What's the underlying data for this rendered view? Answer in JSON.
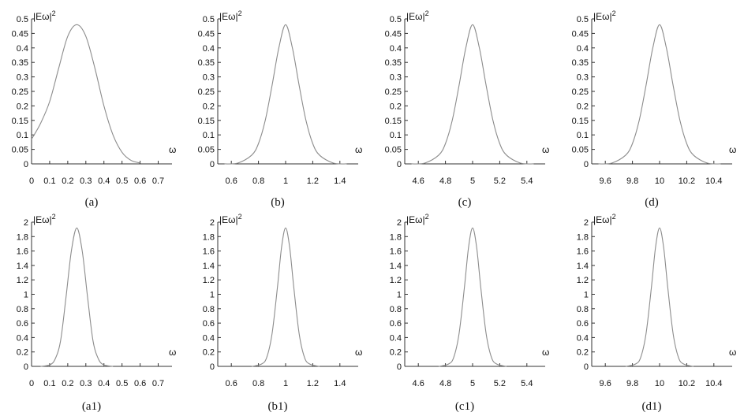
{
  "chart_data": [
    {
      "type": "line",
      "caption": "(a)",
      "ylabel": "|Eω|",
      "ylabel_exp": "2",
      "xlabel": "ω",
      "xlim": [
        0,
        0.75
      ],
      "ylim": [
        0,
        0.5
      ],
      "xticks": [
        "0",
        "0.1",
        "0.2",
        "0.3",
        "0.4",
        "0.5",
        "0.6",
        "0.7"
      ],
      "xtick_values": [
        0,
        0.1,
        0.2,
        0.3,
        0.4,
        0.5,
        0.6,
        0.7
      ],
      "yticks": [
        "0",
        "0.05",
        "0.1",
        "0.15",
        "0.2",
        "0.25",
        "0.3",
        "0.35",
        "0.4",
        "0.45",
        "0.5"
      ],
      "ytick_values": [
        0,
        0.05,
        0.1,
        0.15,
        0.2,
        0.25,
        0.3,
        0.35,
        0.4,
        0.45,
        0.5
      ],
      "series": [
        {
          "x": [
            0,
            0.05,
            0.1,
            0.15,
            0.2,
            0.25,
            0.3,
            0.35,
            0.4,
            0.45,
            0.5,
            0.55,
            0.6
          ],
          "y": [
            0.085,
            0.14,
            0.215,
            0.33,
            0.44,
            0.48,
            0.44,
            0.33,
            0.2,
            0.1,
            0.04,
            0.012,
            0.003
          ]
        }
      ]
    },
    {
      "type": "line",
      "caption": "(b)",
      "ylabel": "|Eω|",
      "ylabel_exp": "2",
      "xlabel": "ω",
      "xlim": [
        0.5,
        1.5
      ],
      "ylim": [
        0,
        0.5
      ],
      "xticks": [
        "0.6",
        "0.8",
        "1",
        "1.2",
        "1.4"
      ],
      "xtick_values": [
        0.6,
        0.8,
        1,
        1.2,
        1.4
      ],
      "yticks": [
        "0",
        "0.05",
        "0.1",
        "0.15",
        "0.2",
        "0.25",
        "0.3",
        "0.35",
        "0.4",
        "0.45",
        "0.5"
      ],
      "ytick_values": [
        0,
        0.05,
        0.1,
        0.15,
        0.2,
        0.25,
        0.3,
        0.35,
        0.4,
        0.45,
        0.5
      ],
      "series": [
        {
          "x": [
            0.55,
            0.65,
            0.75,
            0.8,
            0.85,
            0.9,
            0.95,
            1,
            1.05,
            1.1,
            1.15,
            1.2,
            1.25,
            1.35,
            1.45
          ],
          "y": [
            0.0,
            0.003,
            0.03,
            0.07,
            0.15,
            0.27,
            0.4,
            0.48,
            0.4,
            0.27,
            0.15,
            0.07,
            0.03,
            0.003,
            0.0
          ]
        }
      ]
    },
    {
      "type": "line",
      "caption": "(c)",
      "ylabel": "|Eω|",
      "ylabel_exp": "2",
      "xlabel": "ω",
      "xlim": [
        4.5,
        5.5
      ],
      "ylim": [
        0,
        0.5
      ],
      "xticks": [
        "4.6",
        "4.8",
        "5",
        "5.2",
        "5.4"
      ],
      "xtick_values": [
        4.6,
        4.8,
        5,
        5.2,
        5.4
      ],
      "yticks": [
        "0",
        "0.05",
        "0.1",
        "0.15",
        "0.2",
        "0.25",
        "0.3",
        "0.35",
        "0.4",
        "0.45",
        "0.5"
      ],
      "ytick_values": [
        0,
        0.05,
        0.1,
        0.15,
        0.2,
        0.25,
        0.3,
        0.35,
        0.4,
        0.45,
        0.5
      ],
      "series": [
        {
          "x": [
            4.55,
            4.65,
            4.75,
            4.8,
            4.85,
            4.9,
            4.95,
            5,
            5.05,
            5.1,
            5.15,
            5.2,
            5.25,
            5.35,
            5.45
          ],
          "y": [
            0.0,
            0.003,
            0.03,
            0.07,
            0.15,
            0.27,
            0.4,
            0.48,
            0.4,
            0.27,
            0.15,
            0.07,
            0.03,
            0.003,
            0.0
          ]
        }
      ]
    },
    {
      "type": "line",
      "caption": "(d)",
      "ylabel": "|Eω|",
      "ylabel_exp": "2",
      "xlabel": "ω",
      "xlim": [
        9.5,
        10.5
      ],
      "ylim": [
        0,
        0.5
      ],
      "xticks": [
        "9.6",
        "9.8",
        "10",
        "10.2",
        "10.4"
      ],
      "xtick_values": [
        9.6,
        9.8,
        10,
        10.2,
        10.4
      ],
      "yticks": [
        "0",
        "0.05",
        "0.1",
        "0.15",
        "0.2",
        "0.25",
        "0.3",
        "0.35",
        "0.4",
        "0.45",
        "0.5"
      ],
      "ytick_values": [
        0,
        0.05,
        0.1,
        0.15,
        0.2,
        0.25,
        0.3,
        0.35,
        0.4,
        0.45,
        0.5
      ],
      "series": [
        {
          "x": [
            9.55,
            9.65,
            9.75,
            9.8,
            9.85,
            9.9,
            9.95,
            10,
            10.05,
            10.1,
            10.15,
            10.2,
            10.25,
            10.35,
            10.45
          ],
          "y": [
            0.0,
            0.003,
            0.03,
            0.07,
            0.15,
            0.27,
            0.4,
            0.48,
            0.4,
            0.27,
            0.15,
            0.07,
            0.03,
            0.003,
            0.0
          ]
        }
      ]
    },
    {
      "type": "line",
      "caption": "(a1)",
      "ylabel": "|Eω|",
      "ylabel_exp": "2",
      "xlabel": "ω",
      "xlim": [
        0,
        0.75
      ],
      "ylim": [
        0,
        2
      ],
      "xticks": [
        "0",
        "0.1",
        "0.2",
        "0.3",
        "0.4",
        "0.5",
        "0.6",
        "0.7"
      ],
      "xtick_values": [
        0,
        0.1,
        0.2,
        0.3,
        0.4,
        0.5,
        0.6,
        0.7
      ],
      "yticks": [
        "0",
        "0.2",
        "0.4",
        "0.6",
        "0.8",
        "1",
        "1.2",
        "1.4",
        "1.6",
        "1.8",
        "2"
      ],
      "ytick_values": [
        0,
        0.2,
        0.4,
        0.6,
        0.8,
        1,
        1.2,
        1.4,
        1.6,
        1.8,
        2
      ],
      "series": [
        {
          "x": [
            0.05,
            0.1,
            0.13,
            0.16,
            0.19,
            0.22,
            0.25,
            0.28,
            0.31,
            0.34,
            0.37,
            0.4,
            0.45
          ],
          "y": [
            0.0,
            0.02,
            0.1,
            0.35,
            0.95,
            1.6,
            1.92,
            1.6,
            0.95,
            0.35,
            0.1,
            0.02,
            0.0
          ]
        }
      ]
    },
    {
      "type": "line",
      "caption": "(b1)",
      "ylabel": "|Eω|",
      "ylabel_exp": "2",
      "xlabel": "ω",
      "xlim": [
        0.5,
        1.5
      ],
      "ylim": [
        0,
        2
      ],
      "xticks": [
        "0.6",
        "0.8",
        "1",
        "1.2",
        "1.4"
      ],
      "xtick_values": [
        0.6,
        0.8,
        1,
        1.2,
        1.4
      ],
      "yticks": [
        "0",
        "0.2",
        "0.4",
        "0.6",
        "0.8",
        "1",
        "1.2",
        "1.4",
        "1.6",
        "1.8",
        "2"
      ],
      "ytick_values": [
        0,
        0.2,
        0.4,
        0.6,
        0.8,
        1,
        1.2,
        1.4,
        1.6,
        1.8,
        2
      ],
      "series": [
        {
          "x": [
            0.75,
            0.82,
            0.86,
            0.9,
            0.94,
            0.97,
            1,
            1.03,
            1.06,
            1.1,
            1.14,
            1.18,
            1.25
          ],
          "y": [
            0.0,
            0.03,
            0.12,
            0.45,
            1.1,
            1.65,
            1.92,
            1.65,
            1.1,
            0.45,
            0.12,
            0.03,
            0.0
          ]
        }
      ]
    },
    {
      "type": "line",
      "caption": "(c1)",
      "ylabel": "|Eω|",
      "ylabel_exp": "2",
      "xlabel": "ω",
      "xlim": [
        4.5,
        5.5
      ],
      "ylim": [
        0,
        2
      ],
      "xticks": [
        "4.6",
        "4.8",
        "5",
        "5.2",
        "5.4"
      ],
      "xtick_values": [
        4.6,
        4.8,
        5,
        5.2,
        5.4
      ],
      "yticks": [
        "0",
        "0.2",
        "0.4",
        "0.6",
        "0.8",
        "1",
        "1.2",
        "1.4",
        "1.6",
        "1.8",
        "2"
      ],
      "ytick_values": [
        0,
        0.2,
        0.4,
        0.6,
        0.8,
        1,
        1.2,
        1.4,
        1.6,
        1.8,
        2
      ],
      "series": [
        {
          "x": [
            4.75,
            4.82,
            4.86,
            4.9,
            4.94,
            4.97,
            5,
            5.03,
            5.06,
            5.1,
            5.14,
            5.18,
            5.25
          ],
          "y": [
            0.0,
            0.03,
            0.12,
            0.45,
            1.1,
            1.65,
            1.92,
            1.65,
            1.1,
            0.45,
            0.12,
            0.03,
            0.0
          ]
        }
      ]
    },
    {
      "type": "line",
      "caption": "(d1)",
      "ylabel": "|Eω|",
      "ylabel_exp": "2",
      "xlabel": "ω",
      "xlim": [
        9.5,
        10.5
      ],
      "ylim": [
        0,
        2
      ],
      "xticks": [
        "9.6",
        "9.8",
        "10",
        "10.2",
        "10.4"
      ],
      "xtick_values": [
        9.6,
        9.8,
        10,
        10.2,
        10.4
      ],
      "yticks": [
        "0",
        "0.2",
        "0.4",
        "0.6",
        "0.8",
        "1",
        "1.2",
        "1.4",
        "1.6",
        "1.8",
        "2"
      ],
      "ytick_values": [
        0,
        0.2,
        0.4,
        0.6,
        0.8,
        1,
        1.2,
        1.4,
        1.6,
        1.8,
        2
      ],
      "series": [
        {
          "x": [
            9.75,
            9.82,
            9.86,
            9.9,
            9.94,
            9.97,
            10,
            10.03,
            10.06,
            10.1,
            10.14,
            10.18,
            10.25
          ],
          "y": [
            0.0,
            0.03,
            0.12,
            0.45,
            1.1,
            1.65,
            1.92,
            1.65,
            1.1,
            0.45,
            0.12,
            0.03,
            0.0
          ]
        }
      ]
    }
  ],
  "colors": {
    "curve": "#8c8c8c",
    "axis": "#333333",
    "text": "#111111"
  }
}
